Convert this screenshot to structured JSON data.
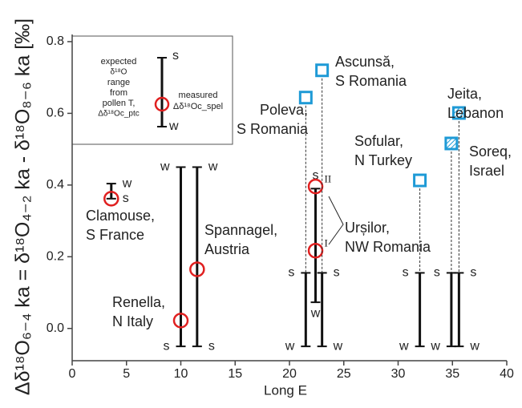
{
  "chart_data": {
    "type": "range",
    "xlabel": "Long E",
    "ylabel": "Δδ¹⁸O₆₋₄ ka = δ¹⁸O₄₋₂ ka - δ¹⁸O₈₋₆ ka [‰]",
    "xlim": [
      0,
      40
    ],
    "xticks": [
      0,
      5,
      10,
      15,
      20,
      25,
      30,
      35,
      40
    ],
    "ylim": [
      -0.09,
      0.82
    ],
    "yticks": [
      {
        "value": 0,
        "label": "0.0"
      },
      0.2,
      0.4,
      0.6,
      0.8
    ],
    "circle_color": "#e02020",
    "square_color": "#1e9ad6",
    "bar_color": "#111111",
    "legend": {
      "expected_lines": [
        "expected",
        "δ¹⁸O",
        "range",
        "from",
        "pollen T,",
        "Δδ¹⁸Oc_ptc"
      ],
      "high_label": "s",
      "low_label": "w",
      "measured_lines": [
        "measured",
        "Δδ¹⁸Oc_spel"
      ]
    },
    "sites": [
      {
        "name": [
          "Clamouse,",
          "S France"
        ],
        "x": 3.6,
        "range": [
          0.362,
          0.404
        ],
        "range_labels": [
          "s",
          "w"
        ],
        "marker": "circle",
        "measured": [
          0.362
        ]
      },
      {
        "name": [
          "Renella,",
          "N Italy"
        ],
        "x": 10.0,
        "range": [
          -0.05,
          0.45
        ],
        "range_labels": [
          "s",
          "w"
        ],
        "marker": "circle",
        "measured": [
          0.022
        ]
      },
      {
        "name": [
          "Spannagel,",
          "Austria"
        ],
        "x": 11.5,
        "range": [
          -0.05,
          0.45
        ],
        "range_labels": [
          "s",
          "w"
        ],
        "marker": "circle",
        "measured": [
          0.165
        ]
      },
      {
        "name": [
          "Poleva,",
          "S Romania"
        ],
        "x": 21.5,
        "range": [
          -0.05,
          0.155
        ],
        "range_labels": [
          "w",
          "s"
        ],
        "marker": "square",
        "measured": [
          0.644
        ]
      },
      {
        "name": [
          "Urșilor,",
          "NW Romania"
        ],
        "x": 22.4,
        "range": [
          0.073,
          0.39
        ],
        "range_labels": [
          "w",
          "s"
        ],
        "marker": "circle",
        "measured": [
          0.396,
          0.217
        ],
        "measured_labels": [
          "II",
          "I"
        ]
      },
      {
        "name": [
          "Ascunsă,",
          "S Romania"
        ],
        "x": 23.0,
        "range": [
          -0.05,
          0.155
        ],
        "range_labels": [
          "w",
          "s"
        ],
        "marker": "square",
        "measured": [
          0.72
        ]
      },
      {
        "name": [
          "Sofular,",
          "N Turkey"
        ],
        "x": 32.0,
        "range": [
          -0.05,
          0.155
        ],
        "range_labels": [
          "w",
          "s"
        ],
        "marker": "square",
        "measured": [
          0.413
        ]
      },
      {
        "name": [
          "Soreq,",
          "Israel"
        ],
        "x": 34.9,
        "range": [
          -0.05,
          0.155
        ],
        "range_labels": [
          "w",
          "s"
        ],
        "marker": "hatched-square",
        "measured": [
          0.516
        ]
      },
      {
        "name": [
          "Jeita,",
          "Lebanon"
        ],
        "x": 35.6,
        "range": [
          -0.05,
          0.155
        ],
        "range_labels": [
          "w",
          "s"
        ],
        "marker": "hatched-square",
        "measured": [
          0.601
        ]
      }
    ]
  }
}
